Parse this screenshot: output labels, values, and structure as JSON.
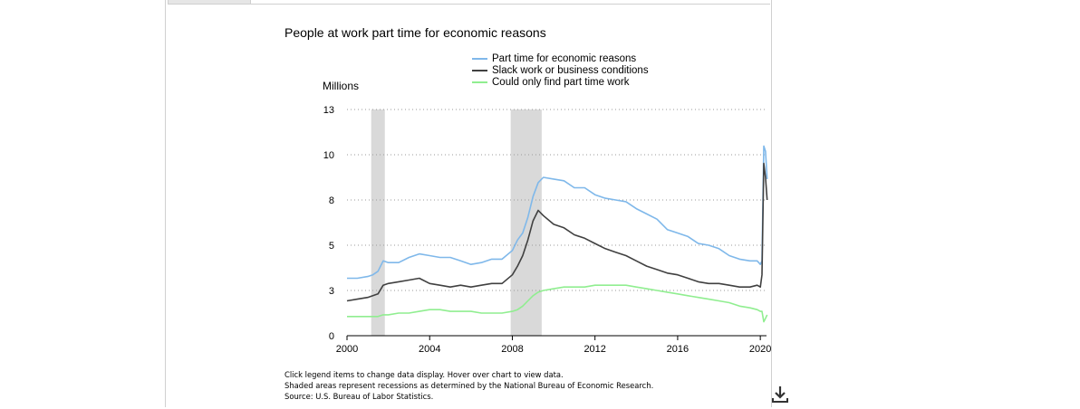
{
  "chart_data": {
    "type": "line",
    "title": "People at work part time for economic reasons",
    "ylabel": "Millions",
    "xlabel": "",
    "xlim": [
      2000,
      2020.3
    ],
    "ylim": [
      0,
      13
    ],
    "x_ticks": [
      2000,
      2004,
      2008,
      2012,
      2016,
      2020
    ],
    "y_ticks": [
      {
        "value": 0,
        "label": "0"
      },
      {
        "value": 2.6,
        "label": "3"
      },
      {
        "value": 5.2,
        "label": "5"
      },
      {
        "value": 7.8,
        "label": "8"
      },
      {
        "value": 10.4,
        "label": "10"
      },
      {
        "value": 13,
        "label": "13"
      }
    ],
    "grid": "horizontal dotted",
    "recessions": [
      [
        2001.17,
        2001.83
      ],
      [
        2007.92,
        2009.42
      ]
    ],
    "x": [
      2000.0,
      2000.5,
      2001.0,
      2001.25,
      2001.5,
      2001.75,
      2002.0,
      2002.5,
      2003.0,
      2003.5,
      2004.0,
      2004.5,
      2005.0,
      2005.5,
      2006.0,
      2006.5,
      2007.0,
      2007.5,
      2008.0,
      2008.25,
      2008.5,
      2008.75,
      2009.0,
      2009.25,
      2009.5,
      2010.0,
      2010.5,
      2011.0,
      2011.5,
      2012.0,
      2012.5,
      2013.0,
      2013.5,
      2014.0,
      2014.5,
      2015.0,
      2015.5,
      2016.0,
      2016.5,
      2017.0,
      2017.5,
      2018.0,
      2018.5,
      2019.0,
      2019.5,
      2019.85,
      2020.0,
      2020.08,
      2020.17,
      2020.25,
      2020.33
    ],
    "series": [
      {
        "name": "Part time for economic reasons",
        "color": "#7fb8ea",
        "values": [
          3.3,
          3.3,
          3.4,
          3.5,
          3.7,
          4.3,
          4.2,
          4.2,
          4.5,
          4.7,
          4.6,
          4.5,
          4.5,
          4.3,
          4.1,
          4.2,
          4.4,
          4.4,
          4.9,
          5.5,
          5.9,
          6.8,
          8.0,
          8.8,
          9.1,
          9.0,
          8.9,
          8.5,
          8.5,
          8.1,
          7.9,
          7.8,
          7.7,
          7.3,
          7.0,
          6.7,
          6.1,
          5.9,
          5.7,
          5.3,
          5.2,
          5.0,
          4.6,
          4.4,
          4.3,
          4.3,
          4.1,
          4.3,
          10.9,
          10.6,
          9.0
        ]
      },
      {
        "name": "Slack work or business conditions",
        "color": "#404040",
        "values": [
          2.0,
          2.1,
          2.2,
          2.3,
          2.4,
          2.9,
          3.0,
          3.1,
          3.2,
          3.3,
          3.0,
          2.9,
          2.8,
          2.9,
          2.8,
          2.9,
          3.0,
          3.0,
          3.5,
          4.0,
          4.6,
          5.5,
          6.6,
          7.2,
          6.9,
          6.4,
          6.2,
          5.8,
          5.6,
          5.3,
          5.0,
          4.8,
          4.6,
          4.3,
          4.0,
          3.8,
          3.6,
          3.5,
          3.3,
          3.1,
          3.0,
          3.0,
          2.9,
          2.8,
          2.8,
          2.9,
          2.8,
          3.5,
          9.9,
          9.1,
          7.8
        ]
      },
      {
        "name": "Could only find part time work",
        "color": "#90ee90",
        "values": [
          1.1,
          1.1,
          1.1,
          1.1,
          1.1,
          1.2,
          1.2,
          1.3,
          1.3,
          1.4,
          1.5,
          1.5,
          1.4,
          1.4,
          1.4,
          1.3,
          1.3,
          1.3,
          1.4,
          1.5,
          1.7,
          2.0,
          2.3,
          2.5,
          2.6,
          2.7,
          2.8,
          2.8,
          2.8,
          2.9,
          2.9,
          2.9,
          2.9,
          2.8,
          2.7,
          2.6,
          2.5,
          2.4,
          2.3,
          2.2,
          2.1,
          2.0,
          1.9,
          1.7,
          1.6,
          1.5,
          1.4,
          1.4,
          0.8,
          1.0,
          1.2
        ]
      }
    ]
  },
  "notes": {
    "line1": "Click legend items to change data display. Hover over chart to view data.",
    "line2": "Shaded areas represent recessions as determined by the National Bureau of Economic Research.",
    "line3": "Source: U.S. Bureau of Labor Statistics."
  },
  "icons": {
    "download": "download-icon"
  }
}
